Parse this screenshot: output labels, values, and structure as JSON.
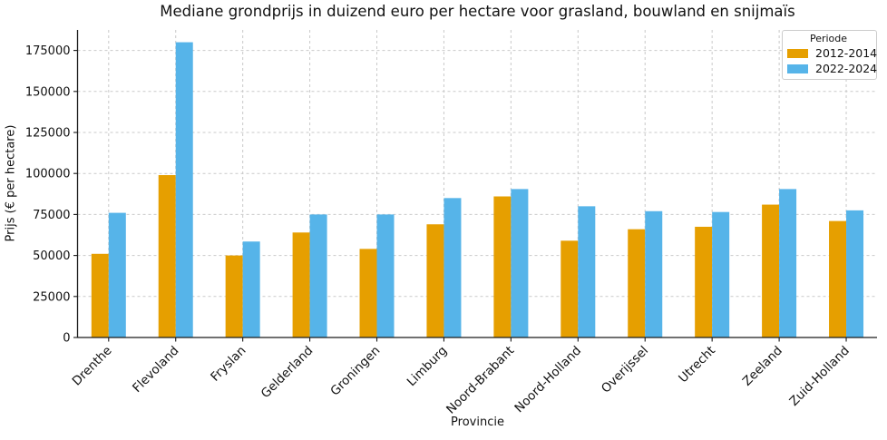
{
  "chart_data": {
    "type": "bar",
    "title": "Mediane grondprijs in duizend euro per hectare voor grasland, bouwland en snijmaïs",
    "xlabel": "Provincie",
    "ylabel": "Prijs (€ per hectare)",
    "legend_title": "Periode",
    "legend_position": "upper right",
    "grid": true,
    "ylim": [
      0,
      187500
    ],
    "yticks": [
      0,
      25000,
      50000,
      75000,
      100000,
      125000,
      150000,
      175000
    ],
    "categories": [
      "Drenthe",
      "Flevoland",
      "Fryslan",
      "Gelderland",
      "Groningen",
      "Limburg",
      "Noord-Brabant",
      "Noord-Holland",
      "Overijssel",
      "Utrecht",
      "Zeeland",
      "Zuid-Holland"
    ],
    "series": [
      {
        "name": "2012-2014",
        "color": "#E69F00",
        "values": [
          51000,
          99000,
          50000,
          64000,
          54000,
          69000,
          86000,
          59000,
          66000,
          67500,
          81000,
          71000
        ]
      },
      {
        "name": "2022-2024",
        "color": "#56B4E9",
        "values": [
          76000,
          180000,
          58500,
          75000,
          75000,
          85000,
          90500,
          80000,
          77000,
          76500,
          90500,
          77500
        ]
      }
    ],
    "colors": {
      "grid": "#c9c9c9",
      "axis": "#1a1a1a",
      "text": "#111111"
    }
  }
}
